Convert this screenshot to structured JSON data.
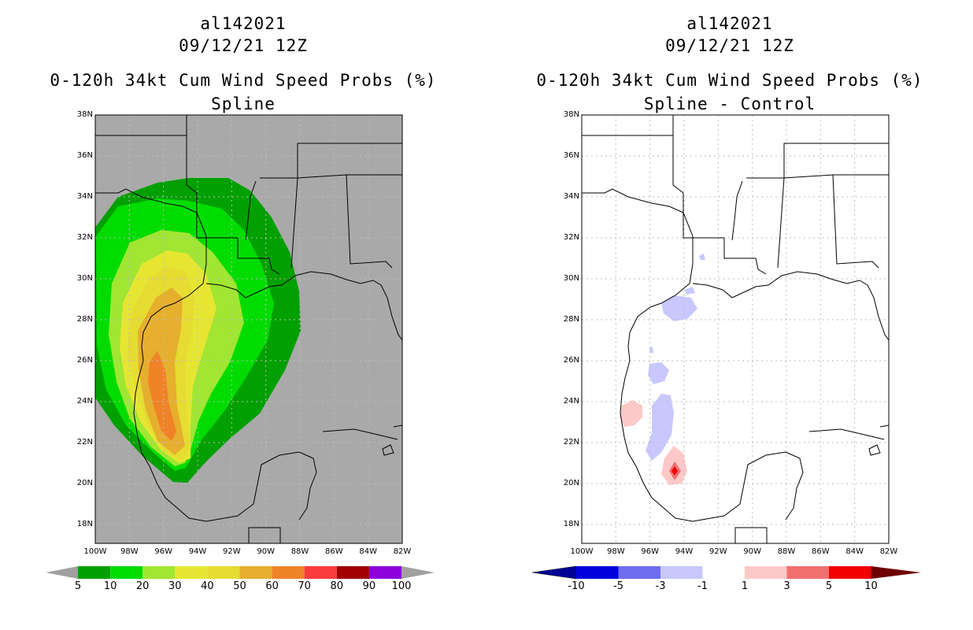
{
  "left_panel": {
    "storm_id": "al142021",
    "datetime": "09/12/21 12Z",
    "product": "0-120h 34kt Cum Wind Speed Probs (%)",
    "subtitle": "Spline",
    "colorbar": {
      "labels": [
        "5",
        "10",
        "20",
        "30",
        "40",
        "50",
        "60",
        "70",
        "80",
        "90",
        "100"
      ],
      "colors": [
        "#00a000",
        "#00dc00",
        "#a0e632",
        "#e6e632",
        "#e6dc32",
        "#e6af2d",
        "#f08228",
        "#fa3c3c",
        "#a00000",
        "#8c00dc"
      ],
      "low_color": "#a0a0a0",
      "high_color": "#a0a0a0"
    }
  },
  "right_panel": {
    "storm_id": "al142021",
    "datetime": "09/12/21 12Z",
    "product": "0-120h 34kt Cum Wind Speed Probs (%)",
    "subtitle": "Spline - Control",
    "colorbar": {
      "labels": [
        "-10",
        "-5",
        "-3",
        "-1",
        "1",
        "3",
        "5",
        "10"
      ],
      "colors": [
        "#0000dc",
        "#6e6ef0",
        "#c8c8ff",
        "#ffffff",
        "#ffc8c8",
        "#f07070",
        "#f00000"
      ],
      "low_color": "#000096",
      "high_color": "#6e0000"
    }
  },
  "axes": {
    "lat_labels": [
      "38N",
      "36N",
      "34N",
      "32N",
      "30N",
      "28N",
      "26N",
      "24N",
      "22N",
      "20N",
      "18N"
    ],
    "lon_labels": [
      "100W",
      "98W",
      "96W",
      "94W",
      "92W",
      "90W",
      "88W",
      "86W",
      "84W",
      "82W"
    ]
  },
  "colors": {
    "ocean_left": "#a9a9a9",
    "ocean_right": "#ffffff",
    "coast": "#000000",
    "grid": "#b4b4b4"
  }
}
